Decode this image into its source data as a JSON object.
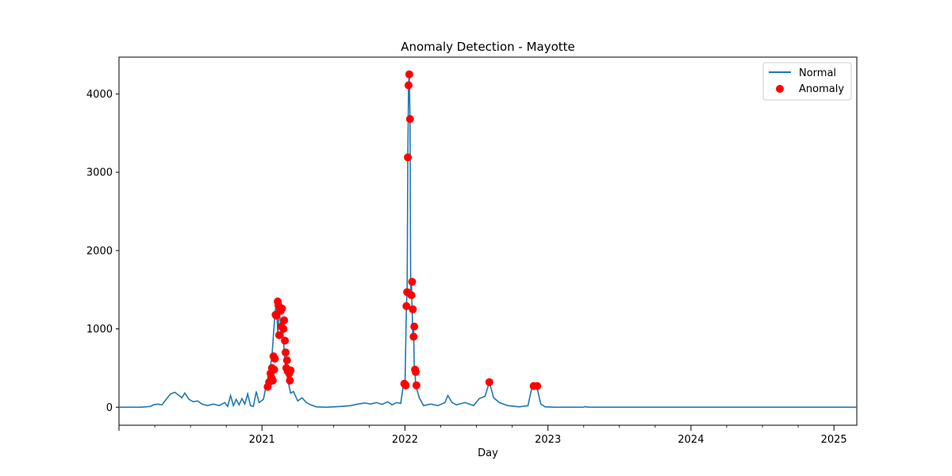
{
  "chart_data": {
    "type": "line",
    "title": "Anomaly Detection - Mayotte",
    "xlabel": "Day",
    "ylabel": "",
    "x_start": "2020-01-01",
    "x_end": "2025-02-28",
    "xlim_years": [
      2020.0,
      2025.16
    ],
    "ylim": [
      -230,
      4470
    ],
    "x_ticks": [
      {
        "label": "2021",
        "value": 2021
      },
      {
        "label": "2022",
        "value": 2022
      },
      {
        "label": "2023",
        "value": 2023
      },
      {
        "label": "2024",
        "value": 2024
      },
      {
        "label": "2025",
        "value": 2025
      }
    ],
    "y_ticks": [
      {
        "label": "0",
        "value": 0
      },
      {
        "label": "1000",
        "value": 1000
      },
      {
        "label": "2000",
        "value": 2000
      },
      {
        "label": "3000",
        "value": 3000
      },
      {
        "label": "4000",
        "value": 4000
      }
    ],
    "legend": {
      "placement": "top-right",
      "entries": [
        {
          "label": "Normal",
          "kind": "line",
          "color": "#1f77b4"
        },
        {
          "label": "Anomaly",
          "kind": "marker",
          "color": "#ff0000"
        }
      ]
    },
    "series": [
      {
        "name": "Normal",
        "color": "#1f77b4",
        "points": [
          [
            2020.0,
            0
          ],
          [
            2020.15,
            0
          ],
          [
            2020.22,
            10
          ],
          [
            2020.24,
            30
          ],
          [
            2020.27,
            40
          ],
          [
            2020.3,
            30
          ],
          [
            2020.33,
            100
          ],
          [
            2020.36,
            170
          ],
          [
            2020.39,
            190
          ],
          [
            2020.42,
            150
          ],
          [
            2020.44,
            120
          ],
          [
            2020.46,
            180
          ],
          [
            2020.49,
            100
          ],
          [
            2020.52,
            70
          ],
          [
            2020.55,
            80
          ],
          [
            2020.58,
            40
          ],
          [
            2020.62,
            20
          ],
          [
            2020.66,
            40
          ],
          [
            2020.7,
            20
          ],
          [
            2020.74,
            60
          ],
          [
            2020.76,
            10
          ],
          [
            2020.78,
            150
          ],
          [
            2020.8,
            20
          ],
          [
            2020.82,
            100
          ],
          [
            2020.84,
            30
          ],
          [
            2020.86,
            110
          ],
          [
            2020.88,
            40
          ],
          [
            2020.9,
            170
          ],
          [
            2020.92,
            20
          ],
          [
            2020.94,
            10
          ],
          [
            2020.96,
            200
          ],
          [
            2020.98,
            60
          ],
          [
            2021.01,
            100
          ],
          [
            2021.03,
            280
          ],
          [
            2021.05,
            420
          ],
          [
            2021.07,
            650
          ],
          [
            2021.09,
            1180
          ],
          [
            2021.1,
            1350
          ],
          [
            2021.11,
            950
          ],
          [
            2021.12,
            1250
          ],
          [
            2021.13,
            1050
          ],
          [
            2021.14,
            1120
          ],
          [
            2021.15,
            850
          ],
          [
            2021.16,
            600
          ],
          [
            2021.17,
            460
          ],
          [
            2021.18,
            350
          ],
          [
            2021.2,
            180
          ],
          [
            2021.22,
            200
          ],
          [
            2021.25,
            80
          ],
          [
            2021.28,
            120
          ],
          [
            2021.31,
            60
          ],
          [
            2021.34,
            30
          ],
          [
            2021.38,
            5
          ],
          [
            2021.45,
            0
          ],
          [
            2021.55,
            10
          ],
          [
            2021.62,
            20
          ],
          [
            2021.67,
            40
          ],
          [
            2021.72,
            55
          ],
          [
            2021.76,
            40
          ],
          [
            2021.8,
            60
          ],
          [
            2021.84,
            35
          ],
          [
            2021.88,
            70
          ],
          [
            2021.91,
            30
          ],
          [
            2021.94,
            60
          ],
          [
            2021.97,
            50
          ],
          [
            2021.99,
            300
          ],
          [
            2022.0,
            280
          ],
          [
            2022.01,
            1300
          ],
          [
            2022.015,
            1480
          ],
          [
            2022.02,
            3200
          ],
          [
            2022.025,
            4120
          ],
          [
            2022.03,
            4250
          ],
          [
            2022.035,
            3680
          ],
          [
            2022.04,
            1430
          ],
          [
            2022.045,
            1600
          ],
          [
            2022.05,
            1250
          ],
          [
            2022.055,
            900
          ],
          [
            2022.06,
            1030
          ],
          [
            2022.065,
            480
          ],
          [
            2022.07,
            450
          ],
          [
            2022.075,
            280
          ],
          [
            2022.1,
            120
          ],
          [
            2022.13,
            20
          ],
          [
            2022.18,
            40
          ],
          [
            2022.23,
            20
          ],
          [
            2022.28,
            60
          ],
          [
            2022.3,
            150
          ],
          [
            2022.33,
            60
          ],
          [
            2022.36,
            30
          ],
          [
            2022.42,
            60
          ],
          [
            2022.48,
            20
          ],
          [
            2022.52,
            110
          ],
          [
            2022.56,
            140
          ],
          [
            2022.59,
            320
          ],
          [
            2022.62,
            120
          ],
          [
            2022.66,
            60
          ],
          [
            2022.72,
            20
          ],
          [
            2022.8,
            5
          ],
          [
            2022.86,
            20
          ],
          [
            2022.89,
            270
          ],
          [
            2022.92,
            270
          ],
          [
            2022.95,
            40
          ],
          [
            2022.98,
            5
          ],
          [
            2023.05,
            0
          ],
          [
            2023.25,
            0
          ],
          [
            2023.26,
            8
          ],
          [
            2023.28,
            0
          ],
          [
            2024.0,
            0
          ],
          [
            2025.16,
            0
          ]
        ]
      },
      {
        "name": "Anomaly",
        "color": "#ff0000",
        "points": [
          [
            2021.04,
            260
          ],
          [
            2021.05,
            320
          ],
          [
            2021.06,
            430
          ],
          [
            2021.065,
            380
          ],
          [
            2021.07,
            500
          ],
          [
            2021.075,
            340
          ],
          [
            2021.08,
            650
          ],
          [
            2021.085,
            480
          ],
          [
            2021.09,
            620
          ],
          [
            2021.095,
            1180
          ],
          [
            2021.1,
            1170
          ],
          [
            2021.11,
            1350
          ],
          [
            2021.115,
            1300
          ],
          [
            2021.12,
            920
          ],
          [
            2021.13,
            1230
          ],
          [
            2021.135,
            1030
          ],
          [
            2021.14,
            1260
          ],
          [
            2021.15,
            1000
          ],
          [
            2021.155,
            1110
          ],
          [
            2021.16,
            850
          ],
          [
            2021.165,
            700
          ],
          [
            2021.17,
            500
          ],
          [
            2021.175,
            600
          ],
          [
            2021.18,
            460
          ],
          [
            2021.19,
            430
          ],
          [
            2021.195,
            340
          ],
          [
            2021.2,
            470
          ],
          [
            2021.995,
            300
          ],
          [
            2022.005,
            280
          ],
          [
            2022.01,
            1290
          ],
          [
            2022.015,
            1470
          ],
          [
            2022.02,
            3190
          ],
          [
            2022.025,
            4110
          ],
          [
            2022.03,
            4250
          ],
          [
            2022.035,
            3680
          ],
          [
            2022.045,
            1430
          ],
          [
            2022.05,
            1600
          ],
          [
            2022.055,
            1250
          ],
          [
            2022.06,
            900
          ],
          [
            2022.065,
            1030
          ],
          [
            2022.07,
            480
          ],
          [
            2022.075,
            450
          ],
          [
            2022.08,
            280
          ],
          [
            2022.59,
            320
          ],
          [
            2022.9,
            270
          ],
          [
            2022.925,
            270
          ]
        ]
      }
    ]
  }
}
